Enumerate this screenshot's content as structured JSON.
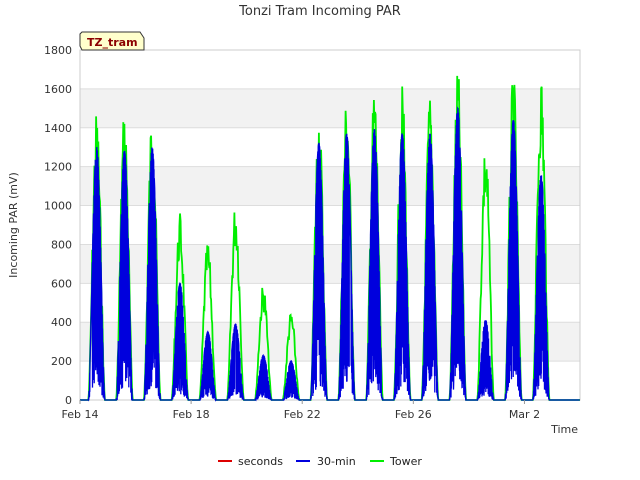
{
  "chart_data": {
    "type": "line",
    "title": "Tonzi Tram Incoming PAR",
    "xlabel": "Time",
    "ylabel": "Incoming PAR (mV)",
    "site_label": "TZ_tram",
    "xlim_days": [
      14,
      32
    ],
    "ylim": [
      0,
      1800
    ],
    "y_ticks": [
      0,
      200,
      400,
      600,
      800,
      1000,
      1200,
      1400,
      1600,
      1800
    ],
    "x_ticks": [
      {
        "day": 14,
        "label": "Feb 14"
      },
      {
        "day": 18,
        "label": "Feb 18"
      },
      {
        "day": 22,
        "label": "Feb 22"
      },
      {
        "day": 26,
        "label": "Feb 26"
      },
      {
        "day": 30,
        "label": "Mar 2"
      }
    ],
    "grid": true,
    "legend_position": "bottom",
    "daily_peaks": {
      "days": [
        14.6,
        15.6,
        16.6,
        17.6,
        18.6,
        19.6,
        20.6,
        21.6,
        22.6,
        23.6,
        24.6,
        25.6,
        26.6,
        27.6,
        28.6,
        29.6,
        30.6,
        31.6
      ],
      "tower_max": [
        1500,
        1510,
        1510,
        965,
        820,
        1030,
        605,
        460,
        1520,
        1590,
        1620,
        1620,
        1580,
        1710,
        1345,
        1685,
        1700,
        0
      ],
      "thirty_min_max": [
        1300,
        1280,
        1300,
        600,
        350,
        390,
        230,
        200,
        1320,
        1370,
        1390,
        1370,
        1370,
        1500,
        410,
        1440,
        1160,
        0
      ]
    },
    "series": [
      {
        "name": "seconds",
        "color": "#dd0000"
      },
      {
        "name": "30-min",
        "color": "#0000dd"
      },
      {
        "name": "Tower",
        "color": "#00ee00"
      }
    ]
  }
}
